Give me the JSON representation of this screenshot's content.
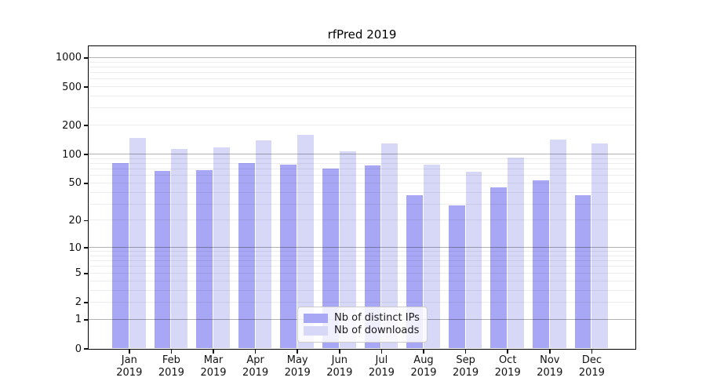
{
  "title": "rfPred 2019",
  "chart_data": {
    "type": "bar",
    "scale": "log1p",
    "title": "rfPred 2019",
    "x_labels": [
      {
        "month": "Jan",
        "year": "2019"
      },
      {
        "month": "Feb",
        "year": "2019"
      },
      {
        "month": "Mar",
        "year": "2019"
      },
      {
        "month": "Apr",
        "year": "2019"
      },
      {
        "month": "May",
        "year": "2019"
      },
      {
        "month": "Jun",
        "year": "2019"
      },
      {
        "month": "Jul",
        "year": "2019"
      },
      {
        "month": "Aug",
        "year": "2019"
      },
      {
        "month": "Sep",
        "year": "2019"
      },
      {
        "month": "Oct",
        "year": "2019"
      },
      {
        "month": "Nov",
        "year": "2019"
      },
      {
        "month": "Dec",
        "year": "2019"
      }
    ],
    "series": [
      {
        "name": "Nb of distinct IPs",
        "key": "distinct-ips",
        "color": "#a7a7f5",
        "values": [
          80,
          67,
          68,
          80,
          77,
          71,
          76,
          37,
          29,
          45,
          53,
          37
        ]
      },
      {
        "name": "Nb of downloads",
        "key": "downloads",
        "color": "#d7d7f8",
        "values": [
          146,
          114,
          117,
          138,
          160,
          108,
          128,
          78,
          66,
          92,
          141,
          128
        ]
      }
    ],
    "y_ticks": [
      1000,
      500,
      200,
      100,
      50,
      20,
      10,
      5,
      2,
      1,
      0
    ],
    "ylim": [
      0,
      1320
    ],
    "grid": {
      "major": [
        1,
        10,
        100,
        1000
      ],
      "minor": [
        2,
        3,
        4,
        5,
        6,
        7,
        8,
        9,
        20,
        30,
        40,
        50,
        60,
        70,
        80,
        90,
        200,
        300,
        400,
        500,
        600,
        700,
        800,
        900
      ]
    },
    "legend_position": "lower center"
  },
  "colors": {
    "bar_dark": "#a7a7f5",
    "bar_light": "#d7d7f8",
    "grid_major": "#b3b3b3",
    "grid_minor": "#ececec",
    "spine": "#000000",
    "text": "#111111",
    "background": "#ffffff"
  }
}
